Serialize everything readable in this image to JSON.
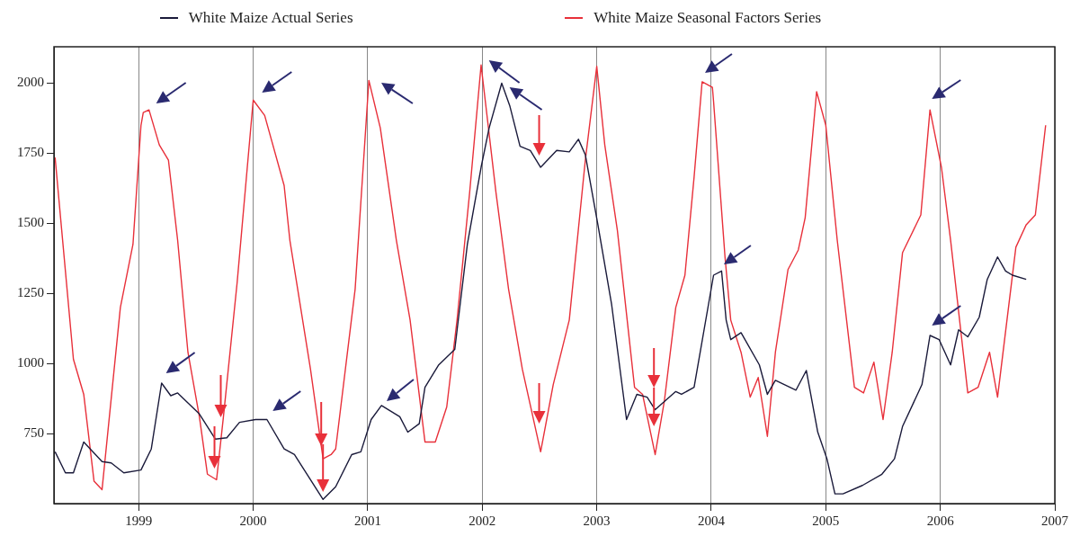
{
  "chart_data": {
    "type": "line",
    "legend": "top",
    "grid": "x",
    "xlim": [
      1998.26,
      2007
    ],
    "xticks": [
      1999,
      2000,
      2001,
      2002,
      2003,
      2004,
      2005,
      2006,
      2007
    ],
    "ylim": [
      500,
      2130
    ],
    "yticks": [
      750,
      1000,
      1250,
      1500,
      1750,
      2000
    ],
    "series": [
      {
        "name": "White Maize Actual Series",
        "color": "#1a1a3a",
        "x": [
          1998.27,
          1998.36,
          1998.43,
          1998.52,
          1998.68,
          1998.76,
          1998.87,
          1999.02,
          1999.11,
          1999.2,
          1999.28,
          1999.34,
          1999.53,
          1999.67,
          1999.77,
          1999.88,
          2000.02,
          2000.12,
          2000.27,
          2000.36,
          2000.47,
          2000.61,
          2000.72,
          2000.86,
          2000.94,
          2001.03,
          2001.12,
          2001.28,
          2001.35,
          2001.45,
          2001.5,
          2001.62,
          2001.76,
          2001.87,
          2001.99,
          2002.06,
          2002.17,
          2002.24,
          2002.33,
          2002.42,
          2002.51,
          2002.65,
          2002.76,
          2002.84,
          2002.9,
          2003.01,
          2003.13,
          2003.26,
          2003.35,
          2003.44,
          2003.51,
          2003.69,
          2003.74,
          2003.85,
          2004.02,
          2004.09,
          2004.13,
          2004.17,
          2004.26,
          2004.42,
          2004.49,
          2004.56,
          2004.74,
          2004.83,
          2004.93,
          2005.01,
          2005.08,
          2005.15,
          2005.32,
          2005.49,
          2005.6,
          2005.67,
          2005.84,
          2005.91,
          2005.99,
          2006.09,
          2006.16,
          2006.24,
          2006.34,
          2006.41,
          2006.5,
          2006.57,
          2006.63,
          2006.75
        ],
        "values": [
          685,
          610,
          610,
          720,
          650,
          645,
          610,
          620,
          695,
          930,
          885,
          895,
          820,
          730,
          735,
          790,
          800,
          800,
          695,
          675,
          605,
          515,
          560,
          675,
          685,
          800,
          850,
          810,
          755,
          785,
          915,
          995,
          1050,
          1425,
          1700,
          1840,
          2000,
          1920,
          1775,
          1760,
          1700,
          1760,
          1755,
          1800,
          1745,
          1495,
          1210,
          800,
          890,
          880,
          835,
          900,
          890,
          915,
          1315,
          1330,
          1155,
          1085,
          1110,
          995,
          890,
          940,
          905,
          975,
          755,
          660,
          535,
          535,
          565,
          605,
          660,
          775,
          925,
          1100,
          1085,
          995,
          1120,
          1095,
          1165,
          1300,
          1380,
          1330,
          1315,
          1300
        ]
      },
      {
        "name": "White Maize Seasonal Factors Series",
        "color": "#e8303a",
        "x": [
          1998.27,
          1998.43,
          1998.52,
          1998.61,
          1998.68,
          1998.84,
          1998.95,
          1999.02,
          1999.04,
          1999.09,
          1999.18,
          1999.26,
          1999.34,
          1999.43,
          1999.53,
          1999.6,
          1999.68,
          1999.74,
          1999.86,
          2000.0,
          2000.1,
          2000.27,
          2000.32,
          2000.5,
          2000.61,
          2000.68,
          2000.72,
          2000.89,
          2001.01,
          2001.11,
          2001.25,
          2001.37,
          2001.5,
          2001.59,
          2001.69,
          2001.78,
          2001.89,
          2001.99,
          2002.12,
          2002.23,
          2002.35,
          2002.51,
          2002.62,
          2002.76,
          2002.9,
          2003.0,
          2003.07,
          2003.18,
          2003.33,
          2003.4,
          2003.51,
          2003.59,
          2003.69,
          2003.77,
          2003.85,
          2003.92,
          2004.01,
          2004.02,
          2004.12,
          2004.17,
          2004.26,
          2004.34,
          2004.41,
          2004.49,
          2004.56,
          2004.67,
          2004.76,
          2004.82,
          2004.92,
          2005.0,
          2005.1,
          2005.25,
          2005.33,
          2005.42,
          2005.5,
          2005.58,
          2005.67,
          2005.83,
          2005.91,
          2006.01,
          2006.09,
          2006.24,
          2006.33,
          2006.43,
          2006.5,
          2006.66,
          2006.75,
          2006.83,
          2006.92
        ],
        "values": [
          1735,
          1015,
          890,
          580,
          550,
          1200,
          1425,
          1850,
          1895,
          1905,
          1780,
          1725,
          1440,
          1040,
          810,
          605,
          585,
          810,
          1290,
          1940,
          1885,
          1635,
          1440,
          980,
          660,
          675,
          695,
          1265,
          2010,
          1840,
          1440,
          1155,
          720,
          720,
          845,
          1155,
          1610,
          2065,
          1610,
          1265,
          980,
          685,
          925,
          1155,
          1725,
          2060,
          1780,
          1475,
          915,
          890,
          675,
          865,
          1200,
          1315,
          1665,
          2005,
          1985,
          1935,
          1380,
          1155,
          1040,
          880,
          950,
          740,
          1040,
          1335,
          1405,
          1520,
          1970,
          1850,
          1440,
          915,
          895,
          1005,
          800,
          1040,
          1395,
          1530,
          1905,
          1700,
          1440,
          895,
          915,
          1040,
          880,
          1415,
          1495,
          1530,
          1850
        ]
      }
    ]
  }
}
